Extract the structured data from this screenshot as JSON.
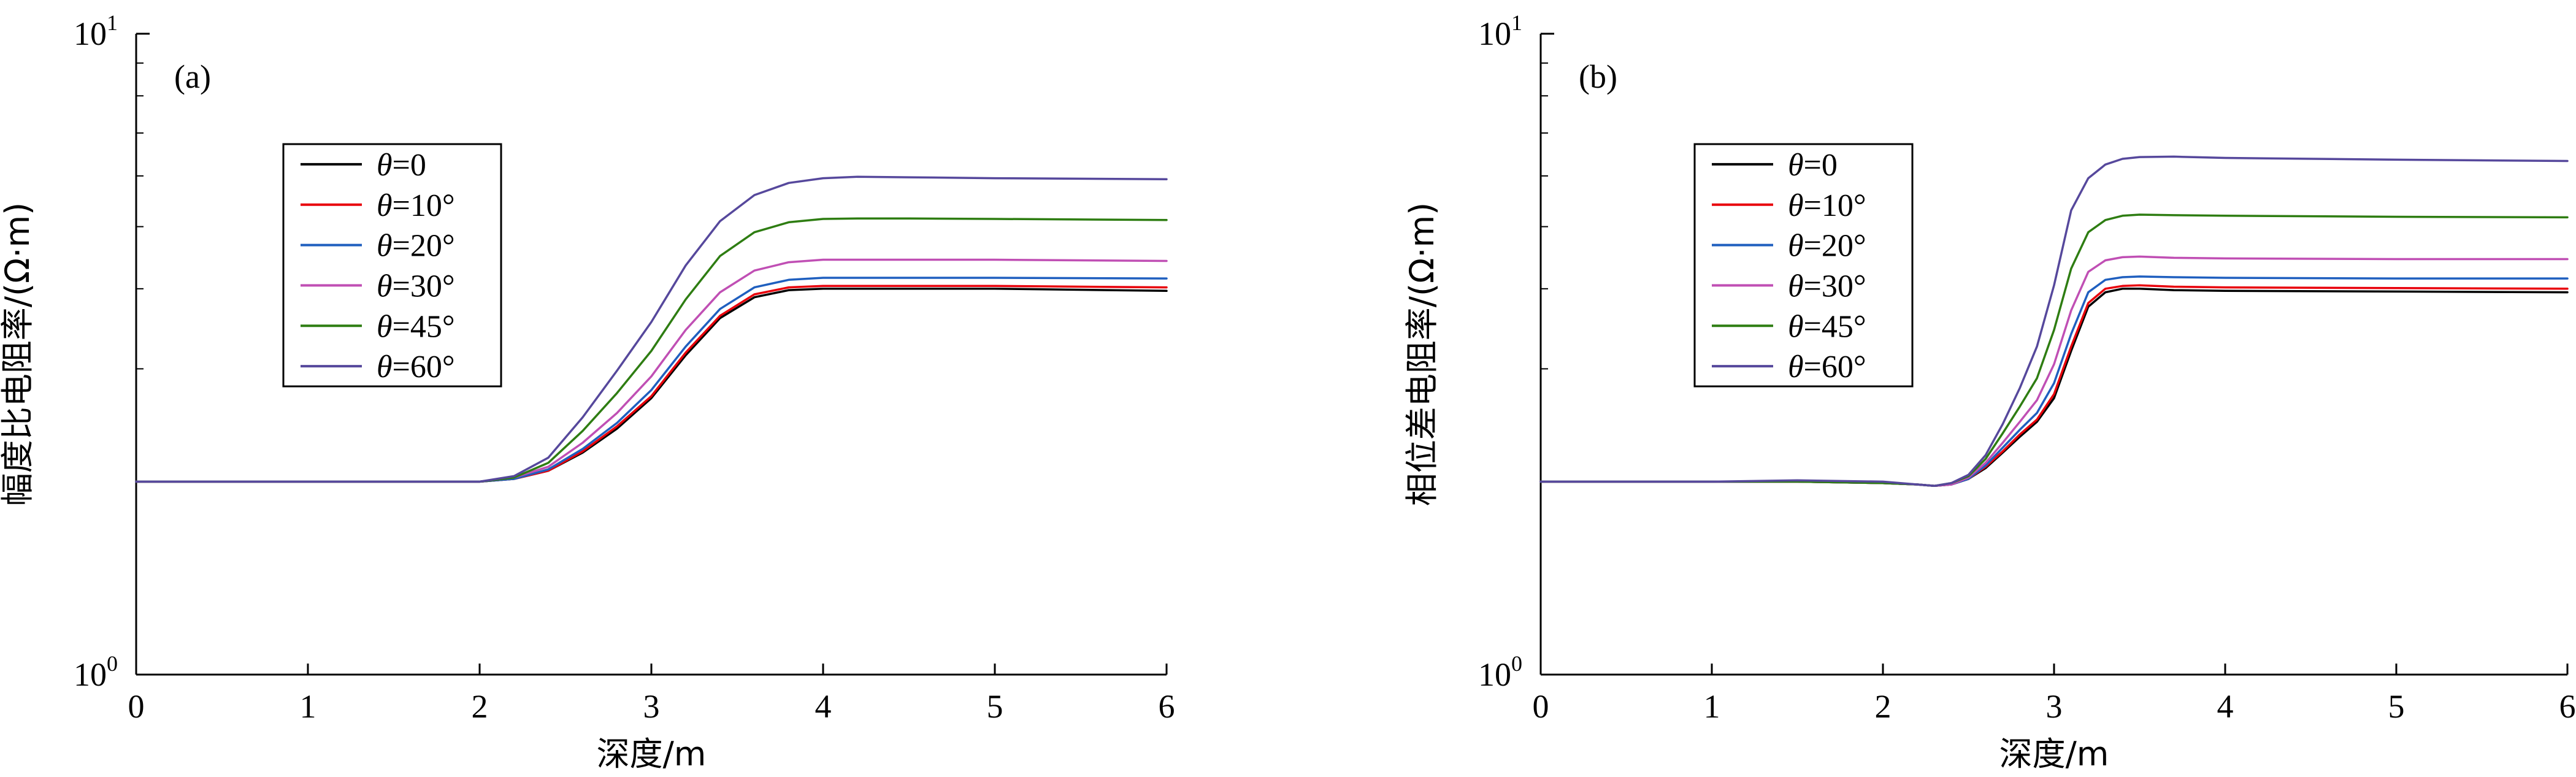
{
  "chart_data": [
    {
      "type": "line",
      "panel_label": "(a)",
      "xlabel": "深度/m",
      "ylabel": "幅度比电阻率/(Ω·m)",
      "xlim": [
        0,
        6
      ],
      "ylim": [
        1,
        10
      ],
      "y_scale": "log",
      "x_ticks": [
        "0",
        "1",
        "2",
        "3",
        "4",
        "5",
        "6"
      ],
      "y_ticks": [
        {
          "base": "10",
          "exp": "0",
          "value": 1
        },
        {
          "base": "10",
          "exp": "1",
          "value": 10
        }
      ],
      "grid": false,
      "legend_position": "upper-left",
      "series": [
        {
          "name": "θ=0",
          "color": "#000000",
          "x": [
            0,
            2.0,
            2.2,
            2.4,
            2.6,
            2.8,
            3.0,
            3.2,
            3.4,
            3.6,
            3.8,
            4.0,
            4.2,
            4.5,
            5.0,
            6.0
          ],
          "y": [
            2.0,
            2.0,
            2.02,
            2.08,
            2.22,
            2.42,
            2.7,
            3.15,
            3.6,
            3.88,
            3.98,
            4.0,
            4.0,
            4.0,
            4.0,
            3.97
          ]
        },
        {
          "name": "θ=10°",
          "color": "#e8000b",
          "x": [
            0,
            2.0,
            2.2,
            2.4,
            2.6,
            2.8,
            3.0,
            3.2,
            3.4,
            3.6,
            3.8,
            4.0,
            4.2,
            4.5,
            5.0,
            6.0
          ],
          "y": [
            2.0,
            2.0,
            2.02,
            2.08,
            2.23,
            2.44,
            2.72,
            3.18,
            3.63,
            3.92,
            4.02,
            4.04,
            4.04,
            4.04,
            4.04,
            4.02
          ]
        },
        {
          "name": "θ=20°",
          "color": "#1f5fbf",
          "x": [
            0,
            2.0,
            2.2,
            2.4,
            2.6,
            2.8,
            3.0,
            3.2,
            3.4,
            3.6,
            3.8,
            4.0,
            4.2,
            4.5,
            5.0,
            6.0
          ],
          "y": [
            2.0,
            2.0,
            2.02,
            2.09,
            2.25,
            2.47,
            2.78,
            3.25,
            3.72,
            4.02,
            4.13,
            4.16,
            4.16,
            4.16,
            4.16,
            4.15
          ]
        },
        {
          "name": "θ=30°",
          "color": "#c04fb4",
          "x": [
            0,
            2.0,
            2.2,
            2.4,
            2.6,
            2.8,
            3.0,
            3.2,
            3.4,
            3.6,
            3.8,
            4.0,
            4.2,
            4.5,
            5.0,
            6.0
          ],
          "y": [
            2.0,
            2.0,
            2.03,
            2.11,
            2.3,
            2.56,
            2.92,
            3.45,
            3.95,
            4.27,
            4.4,
            4.44,
            4.44,
            4.44,
            4.44,
            4.42
          ]
        },
        {
          "name": "θ=45°",
          "color": "#2e7d12",
          "x": [
            0,
            2.0,
            2.2,
            2.4,
            2.6,
            2.8,
            3.0,
            3.2,
            3.4,
            3.6,
            3.8,
            4.0,
            4.2,
            4.5,
            5.0,
            6.0
          ],
          "y": [
            2.0,
            2.0,
            2.03,
            2.14,
            2.4,
            2.75,
            3.2,
            3.85,
            4.5,
            4.9,
            5.08,
            5.14,
            5.15,
            5.15,
            5.14,
            5.12
          ]
        },
        {
          "name": "θ=60°",
          "color": "#56489c",
          "x": [
            0,
            2.0,
            2.2,
            2.4,
            2.6,
            2.8,
            3.0,
            3.2,
            3.4,
            3.6,
            3.8,
            4.0,
            4.2,
            4.5,
            5.0,
            6.0
          ],
          "y": [
            2.0,
            2.0,
            2.04,
            2.18,
            2.52,
            2.98,
            3.55,
            4.35,
            5.1,
            5.6,
            5.85,
            5.95,
            5.98,
            5.97,
            5.95,
            5.93
          ]
        }
      ]
    },
    {
      "type": "line",
      "panel_label": "(b)",
      "xlabel": "深度/m",
      "ylabel": "相位差电阻率/(Ω·m)",
      "xlim": [
        0,
        6
      ],
      "ylim": [
        1,
        10
      ],
      "y_scale": "log",
      "x_ticks": [
        "0",
        "1",
        "2",
        "3",
        "4",
        "5",
        "6"
      ],
      "y_ticks": [
        {
          "base": "10",
          "exp": "0",
          "value": 1
        },
        {
          "base": "10",
          "exp": "1",
          "value": 10
        }
      ],
      "grid": false,
      "legend_position": "upper-left",
      "series": [
        {
          "name": "θ=0",
          "color": "#000000",
          "x": [
            0,
            1.0,
            1.5,
            2.0,
            2.2,
            2.3,
            2.4,
            2.5,
            2.6,
            2.7,
            2.8,
            2.9,
            3.0,
            3.1,
            3.2,
            3.3,
            3.4,
            3.5,
            3.7,
            4.0,
            5.0,
            6.0
          ],
          "y": [
            2.0,
            2.0,
            2.0,
            1.99,
            1.98,
            1.97,
            1.98,
            2.02,
            2.1,
            2.22,
            2.35,
            2.48,
            2.7,
            3.2,
            3.75,
            3.95,
            4.0,
            4.0,
            3.98,
            3.97,
            3.96,
            3.95
          ]
        },
        {
          "name": "θ=10°",
          "color": "#e8000b",
          "x": [
            0,
            1.0,
            1.5,
            2.0,
            2.2,
            2.3,
            2.4,
            2.5,
            2.6,
            2.7,
            2.8,
            2.9,
            3.0,
            3.1,
            3.2,
            3.3,
            3.4,
            3.5,
            3.7,
            4.0,
            5.0,
            6.0
          ],
          "y": [
            2.0,
            2.0,
            2.0,
            1.99,
            1.98,
            1.97,
            1.98,
            2.02,
            2.11,
            2.23,
            2.37,
            2.5,
            2.74,
            3.25,
            3.8,
            4.0,
            4.04,
            4.05,
            4.03,
            4.02,
            4.01,
            4.0
          ]
        },
        {
          "name": "θ=20°",
          "color": "#1f5fbf",
          "x": [
            0,
            1.0,
            1.5,
            2.0,
            2.2,
            2.3,
            2.4,
            2.5,
            2.6,
            2.7,
            2.8,
            2.9,
            3.0,
            3.1,
            3.2,
            3.3,
            3.4,
            3.5,
            3.7,
            4.0,
            5.0,
            6.0
          ],
          "y": [
            2.0,
            2.0,
            2.0,
            1.99,
            1.98,
            1.97,
            1.98,
            2.02,
            2.12,
            2.26,
            2.41,
            2.56,
            2.85,
            3.4,
            3.95,
            4.13,
            4.17,
            4.18,
            4.17,
            4.16,
            4.15,
            4.15
          ]
        },
        {
          "name": "θ=30°",
          "color": "#c04fb4",
          "x": [
            0,
            1.0,
            1.5,
            2.0,
            2.2,
            2.3,
            2.4,
            2.5,
            2.6,
            2.7,
            2.8,
            2.9,
            3.0,
            3.1,
            3.2,
            3.3,
            3.4,
            3.5,
            3.7,
            4.0,
            5.0,
            6.0
          ],
          "y": [
            2.0,
            2.0,
            2.0,
            1.99,
            1.98,
            1.97,
            1.98,
            2.03,
            2.14,
            2.3,
            2.48,
            2.68,
            3.05,
            3.7,
            4.25,
            4.43,
            4.48,
            4.49,
            4.47,
            4.46,
            4.45,
            4.45
          ]
        },
        {
          "name": "θ=45°",
          "color": "#2e7d12",
          "x": [
            0,
            1.0,
            1.5,
            2.0,
            2.2,
            2.3,
            2.4,
            2.5,
            2.6,
            2.7,
            2.8,
            2.9,
            3.0,
            3.1,
            3.2,
            3.3,
            3.4,
            3.5,
            3.7,
            4.0,
            5.0,
            6.0
          ],
          "y": [
            2.0,
            2.0,
            2.0,
            1.99,
            1.98,
            1.97,
            1.99,
            2.04,
            2.17,
            2.38,
            2.62,
            2.9,
            3.45,
            4.3,
            4.9,
            5.12,
            5.2,
            5.22,
            5.21,
            5.2,
            5.18,
            5.17
          ]
        },
        {
          "name": "θ=60°",
          "color": "#56489c",
          "x": [
            0,
            1.0,
            1.5,
            2.0,
            2.2,
            2.3,
            2.4,
            2.5,
            2.6,
            2.7,
            2.8,
            2.9,
            3.0,
            3.1,
            3.2,
            3.3,
            3.4,
            3.5,
            3.7,
            4.0,
            5.0,
            6.0
          ],
          "y": [
            2.0,
            2.0,
            2.01,
            2.0,
            1.98,
            1.97,
            1.99,
            2.05,
            2.2,
            2.46,
            2.8,
            3.25,
            4.05,
            5.3,
            5.95,
            6.25,
            6.38,
            6.42,
            6.43,
            6.4,
            6.36,
            6.33
          ]
        }
      ]
    }
  ]
}
